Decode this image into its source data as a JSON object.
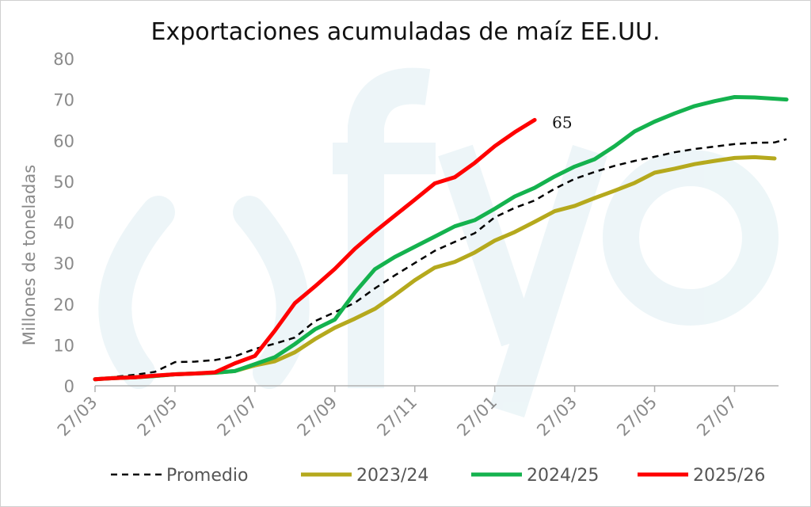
{
  "chart_data": {
    "type": "line",
    "title": "Exportaciones acumuladas de maíz EE.UU.",
    "ylabel": "Millones de toneladas",
    "xlabel": "",
    "ylim": [
      0,
      80
    ],
    "yticks": [
      0,
      10,
      20,
      30,
      40,
      50,
      60,
      70,
      80
    ],
    "xlim": [
      0,
      17.1
    ],
    "xtick_labels": [
      "27/03",
      "27/05",
      "27/07",
      "27/09",
      "27/11",
      "27/01",
      "27/03",
      "27/05",
      "27/07"
    ],
    "xtick_positions": [
      0,
      2,
      4,
      6,
      8,
      10,
      12,
      14,
      16
    ],
    "grid": false,
    "legend_position": "bottom",
    "annotation": {
      "text": "65",
      "x": 11,
      "y": 65
    },
    "series": [
      {
        "name": "Promedio",
        "color": "#000000",
        "style": "dashed",
        "x": [
          0,
          0.5,
          1,
          1.5,
          2,
          2.5,
          3,
          3.5,
          4,
          4.5,
          5,
          5.5,
          6,
          6.5,
          7,
          7.5,
          8,
          8.5,
          9,
          9.5,
          10,
          10.5,
          11,
          11.5,
          12,
          12.5,
          13,
          13.5,
          14,
          14.5,
          15,
          15.5,
          16,
          16.5,
          17,
          17.3
        ],
        "values": [
          1.6,
          2.2,
          2.7,
          3.4,
          5.8,
          5.9,
          6.3,
          7.2,
          9.0,
          10.3,
          11.8,
          15.8,
          18.0,
          20.3,
          23.8,
          27.0,
          30.0,
          33.0,
          35.2,
          37.3,
          41.2,
          43.5,
          45.3,
          48.2,
          50.6,
          52.3,
          53.8,
          55.0,
          56.0,
          57.1,
          57.9,
          58.5,
          59.1,
          59.4,
          59.5,
          60.3
        ]
      },
      {
        "name": "2023/24",
        "color": "#b5a91d",
        "style": "solid",
        "x": [
          0,
          0.5,
          1,
          1.5,
          2,
          2.5,
          3,
          3.5,
          4,
          4.5,
          5,
          5.5,
          6,
          6.5,
          7,
          7.5,
          8,
          8.5,
          9,
          9.5,
          10,
          10.5,
          11,
          11.5,
          12,
          12.5,
          13,
          13.5,
          14,
          14.5,
          15,
          15.5,
          16,
          16.5,
          17
        ],
        "values": [
          1.6,
          1.9,
          2.1,
          2.4,
          2.8,
          3.0,
          3.2,
          3.6,
          5.0,
          6.0,
          8.2,
          11.4,
          14.2,
          16.4,
          18.8,
          22.2,
          25.8,
          28.9,
          30.3,
          32.6,
          35.5,
          37.6,
          40.1,
          42.7,
          44.0,
          45.9,
          47.7,
          49.6,
          52.1,
          53.1,
          54.2,
          55.0,
          55.7,
          55.9,
          55.6
        ]
      },
      {
        "name": "2024/25",
        "color": "#14b24e",
        "style": "solid",
        "x": [
          0,
          0.5,
          1,
          1.5,
          2,
          2.5,
          3,
          3.5,
          4,
          4.5,
          5,
          5.5,
          6,
          6.5,
          7,
          7.5,
          8,
          8.5,
          9,
          9.5,
          10,
          10.5,
          11,
          11.5,
          12,
          12.5,
          13,
          13.5,
          14,
          14.5,
          15,
          15.5,
          16,
          16.5,
          17,
          17.3
        ],
        "values": [
          1.6,
          1.9,
          2.1,
          2.4,
          2.8,
          3.0,
          3.2,
          3.6,
          5.3,
          7.0,
          10.2,
          13.8,
          16.2,
          22.8,
          28.5,
          31.5,
          34.0,
          36.5,
          39.0,
          40.5,
          43.3,
          46.3,
          48.4,
          51.2,
          53.6,
          55.4,
          58.6,
          62.2,
          64.6,
          66.6,
          68.4,
          69.6,
          70.6,
          70.5,
          70.2,
          70.0
        ]
      },
      {
        "name": "2025/26",
        "color": "#ff0000",
        "style": "solid",
        "x": [
          0,
          0.5,
          1,
          1.5,
          2,
          2.5,
          3,
          3.5,
          4,
          4.5,
          5,
          5.5,
          6,
          6.5,
          7,
          7.5,
          8,
          8.5,
          9,
          9.5,
          10,
          10.5,
          11
        ],
        "values": [
          1.6,
          1.9,
          2.1,
          2.5,
          2.8,
          3.0,
          3.3,
          5.5,
          7.3,
          13.5,
          20.2,
          24.3,
          28.6,
          33.5,
          37.7,
          41.6,
          45.5,
          49.5,
          51.0,
          54.5,
          58.6,
          62.0,
          65.0
        ]
      }
    ]
  }
}
